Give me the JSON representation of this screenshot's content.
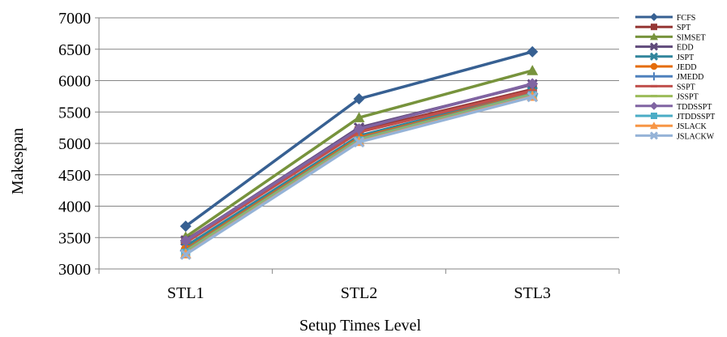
{
  "chart_data": {
    "type": "line",
    "xlabel": "Setup Times Level",
    "ylabel": "Makespan",
    "categories": [
      "STL1",
      "STL2",
      "STL3"
    ],
    "ylim": [
      3000,
      7000
    ],
    "yticks": [
      3000,
      3500,
      4000,
      4500,
      5000,
      5500,
      6000,
      6500,
      7000
    ],
    "grid": true,
    "legend_position": "right",
    "series": [
      {
        "name": "FCFS",
        "values": [
          3680,
          5710,
          6460
        ],
        "color": "#376092",
        "marker": "diamond"
      },
      {
        "name": "SPT",
        "values": [
          3460,
          5200,
          5860
        ],
        "color": "#953735",
        "marker": "square"
      },
      {
        "name": "SIMSET",
        "values": [
          3510,
          5410,
          6160
        ],
        "color": "#77933c",
        "marker": "triangle"
      },
      {
        "name": "EDD",
        "values": [
          3450,
          5250,
          5940
        ],
        "color": "#604a7b",
        "marker": "x"
      },
      {
        "name": "JSPT",
        "values": [
          3360,
          5120,
          5820
        ],
        "color": "#31859c",
        "marker": "x"
      },
      {
        "name": "JEDD",
        "values": [
          3310,
          5090,
          5800
        ],
        "color": "#e46c0a",
        "marker": "circle"
      },
      {
        "name": "JMEDD",
        "values": [
          3290,
          5070,
          5790
        ],
        "color": "#4f81bd",
        "marker": "plus"
      },
      {
        "name": "SSPT",
        "values": [
          3420,
          5180,
          5840
        ],
        "color": "#c0504d",
        "marker": "dash"
      },
      {
        "name": "JSSPT",
        "values": [
          3280,
          5060,
          5780
        ],
        "color": "#9bbb59",
        "marker": "dash"
      },
      {
        "name": "TDDSSPT",
        "values": [
          3450,
          5230,
          5950
        ],
        "color": "#8064a2",
        "marker": "diamond"
      },
      {
        "name": "JTDDSSPT",
        "values": [
          3250,
          5040,
          5760
        ],
        "color": "#4bacc6",
        "marker": "square"
      },
      {
        "name": "JSLACK",
        "values": [
          3240,
          5030,
          5750
        ],
        "color": "#f79646",
        "marker": "triangle"
      },
      {
        "name": "JSLACKW",
        "values": [
          3230,
          5020,
          5740
        ],
        "color": "#95b3d7",
        "marker": "x"
      }
    ]
  }
}
